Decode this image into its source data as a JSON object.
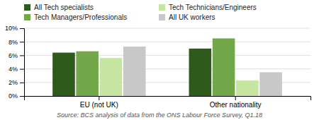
{
  "chart_data": {
    "type": "bar",
    "categories": [
      "EU (not UK)",
      "Other nationality"
    ],
    "series": [
      {
        "name": "All Tech specialists",
        "color": "#2e5a1c",
        "values": [
          6.4,
          7.0
        ]
      },
      {
        "name": "Tech Managers/Professionals",
        "color": "#72a84a",
        "values": [
          6.6,
          8.5
        ]
      },
      {
        "name": "Tech Technicians/Engineers",
        "color": "#c5e5a0",
        "values": [
          5.6,
          2.3
        ]
      },
      {
        "name": "All UK workers",
        "color": "#c8c8c8",
        "values": [
          7.3,
          3.5
        ]
      }
    ],
    "ylim": [
      0,
      10
    ],
    "yticks": [
      {
        "value": 0,
        "label": "0%"
      },
      {
        "value": 2,
        "label": "2%"
      },
      {
        "value": 4,
        "label": "4%"
      },
      {
        "value": 6,
        "label": "6%"
      },
      {
        "value": 8,
        "label": "8%"
      },
      {
        "value": 10,
        "label": "10%"
      }
    ],
    "grid": true,
    "legend": "top",
    "annotations": [
      "Source: BCS analysis of data from the ONS Labour Force Survey, Q1.18"
    ]
  }
}
